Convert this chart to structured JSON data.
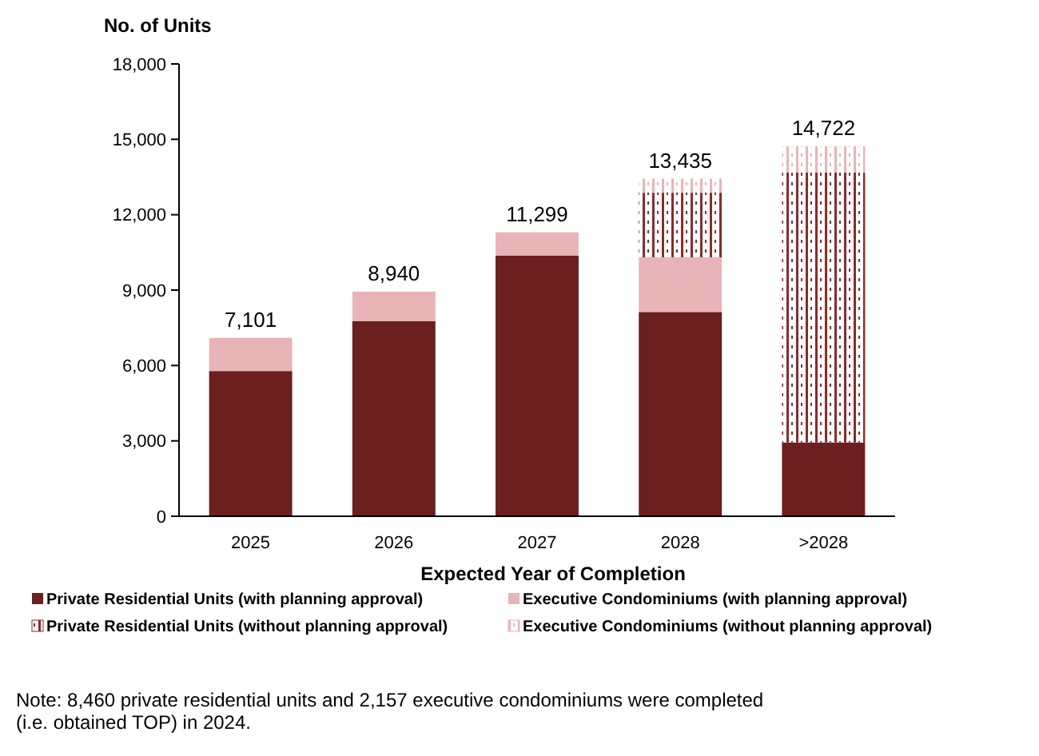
{
  "chart_data": {
    "type": "bar",
    "stacked": true,
    "ylabel": "No. of Units",
    "xlabel": "Expected Year of Completion",
    "categories": [
      "2025",
      "2026",
      "2027",
      "2028",
      ">2028"
    ],
    "series": [
      {
        "name": "Private Residential Units (with planning approval)",
        "color": "#6b1f1f",
        "values": [
          5780,
          7760,
          10370,
          8130,
          2940
        ]
      },
      {
        "name": "Executive Condominiums (with planning approval)",
        "color": "#e8b4b8",
        "values": [
          1320,
          1180,
          930,
          2175,
          0
        ]
      },
      {
        "name": "Private Residential Units (without planning approval)",
        "color": "#8b2a2a",
        "values": [
          0,
          0,
          0,
          2570,
          10740
        ]
      },
      {
        "name": "Executive Condominiums (without planning approval)",
        "color": "#e8b4b8",
        "values": [
          0,
          0,
          0,
          560,
          1040
        ]
      }
    ],
    "totals": [
      "7,101",
      "8,940",
      "11,299",
      "13,435",
      "14,722"
    ],
    "ylim": [
      0,
      18000
    ],
    "yticks": [
      {
        "value": 0,
        "label": "0"
      },
      {
        "value": 3000,
        "label": "3,000"
      },
      {
        "value": 6000,
        "label": "6,000"
      },
      {
        "value": 9000,
        "label": "9,000"
      },
      {
        "value": 12000,
        "label": "12,000"
      },
      {
        "value": 15000,
        "label": "15,000"
      },
      {
        "value": 18000,
        "label": "18,000"
      }
    ],
    "grid": false,
    "legend": "bottom",
    "annotations": [
      "Note: 8,460 private residential units and 2,157 executive condominiums were completed (i.e. obtained TOP) in 2024."
    ]
  }
}
